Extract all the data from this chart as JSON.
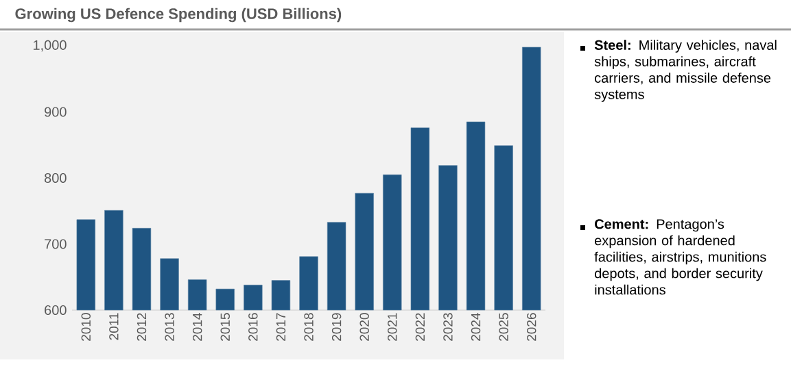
{
  "chart_data": {
    "type": "bar",
    "title": "Growing US Defence Spending (USD Billions)",
    "categories": [
      "2010",
      "2011",
      "2012",
      "2013",
      "2014",
      "2015",
      "2016",
      "2017",
      "2018",
      "2019",
      "2020",
      "2021",
      "2022",
      "2023",
      "2024",
      "2025",
      "2026"
    ],
    "values": [
      737,
      751,
      724,
      678,
      646,
      632,
      638,
      645,
      681,
      733,
      777,
      805,
      876,
      819,
      885,
      849,
      998
    ],
    "color": "#1f5582",
    "ylim": [
      600,
      1000
    ],
    "yticks": [
      600,
      700,
      800,
      900,
      {
        "value": 1000,
        "label": "1,000"
      }
    ],
    "annotations": [
      "**Steel:** Military vehicles, naval ships, submarines, aircraft carriers, and missile defense systems",
      "**Cement:** Pentagon’s expansion of hardened facilities, airstrips, munitions depots, and border security installations"
    ]
  }
}
